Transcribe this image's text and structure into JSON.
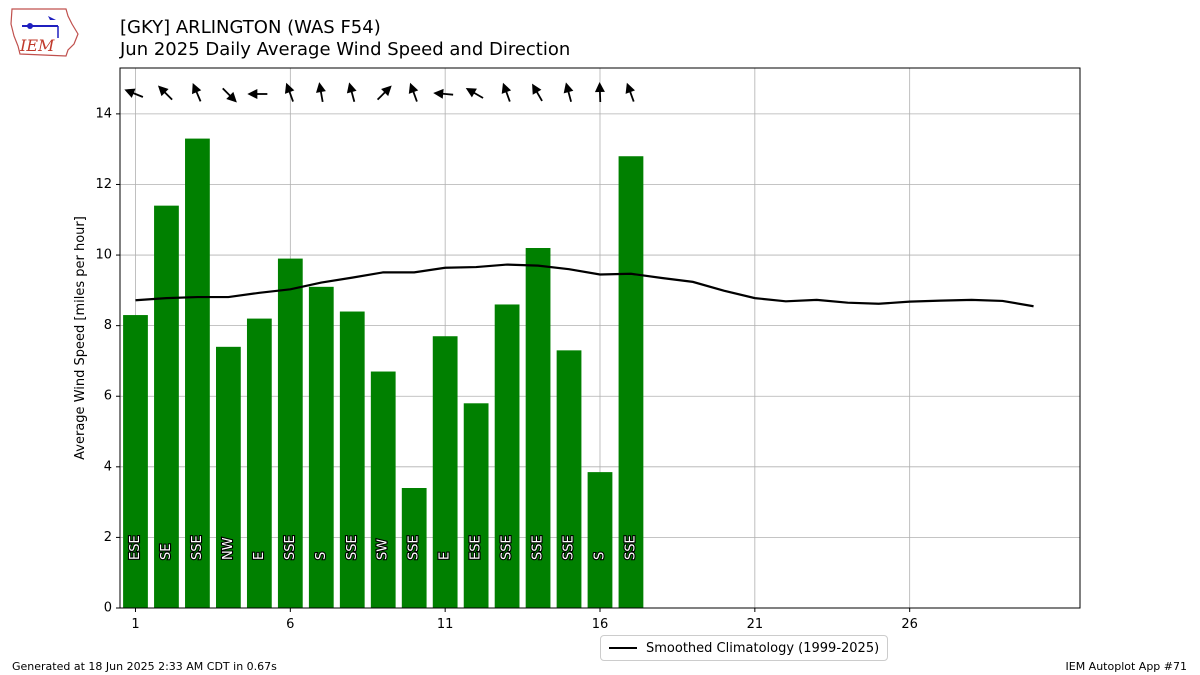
{
  "header": {
    "title": "[GKY] ARLINGTON (WAS F54)",
    "subtitle": "Jun 2025 Daily Average Wind Speed and Direction"
  },
  "logo": {
    "text": "IEM"
  },
  "chart_data": {
    "type": "bar",
    "ylabel": "Average Wind Speed [miles per hour]",
    "xlabel": "",
    "xlim": [
      0.5,
      31.5
    ],
    "ylim": [
      0,
      15.3
    ],
    "xticks": [
      1,
      6,
      11,
      16,
      21,
      26
    ],
    "yticks": [
      0,
      2,
      4,
      6,
      8,
      10,
      12,
      14
    ],
    "grid": true,
    "bar_color": "#008000",
    "days": [
      1,
      2,
      3,
      4,
      5,
      6,
      7,
      8,
      9,
      10,
      11,
      12,
      13,
      14,
      15,
      16,
      17
    ],
    "values": [
      8.3,
      11.4,
      13.3,
      7.4,
      8.2,
      9.9,
      9.1,
      8.4,
      6.7,
      3.4,
      7.7,
      5.8,
      8.6,
      10.2,
      7.3,
      3.85,
      12.8
    ],
    "directions": [
      "ESE",
      "SE",
      "SSE",
      "NW",
      "E",
      "SSE",
      "S",
      "SSE",
      "SW",
      "SSE",
      "E",
      "ESE",
      "SSE",
      "SSE",
      "SSE",
      "S",
      "SSE"
    ],
    "direction_degrees": [
      112,
      135,
      157,
      315,
      90,
      160,
      170,
      165,
      225,
      160,
      95,
      120,
      160,
      150,
      165,
      178,
      160
    ],
    "climatology": {
      "name": "Smoothed Climatology (1999-2025)",
      "x": [
        1,
        2,
        3,
        4,
        5,
        6,
        7,
        8,
        9,
        10,
        11,
        12,
        13,
        14,
        15,
        16,
        17,
        18,
        19,
        20,
        21,
        22,
        23,
        24,
        25,
        26,
        27,
        28,
        29,
        30
      ],
      "values": [
        8.72,
        8.78,
        8.81,
        8.81,
        8.93,
        9.03,
        9.22,
        9.36,
        9.51,
        9.51,
        9.64,
        9.66,
        9.73,
        9.7,
        9.6,
        9.45,
        9.47,
        9.35,
        9.24,
        8.99,
        8.78,
        8.69,
        8.73,
        8.65,
        8.62,
        8.68,
        8.71,
        8.73,
        8.7,
        8.55
      ],
      "color": "#000000"
    }
  },
  "legend": {
    "label": "Smoothed Climatology (1999-2025)"
  },
  "footer": {
    "generated": "Generated at 18 Jun 2025 2:33 AM CDT in 0.67s",
    "app": "IEM Autoplot App #71"
  }
}
